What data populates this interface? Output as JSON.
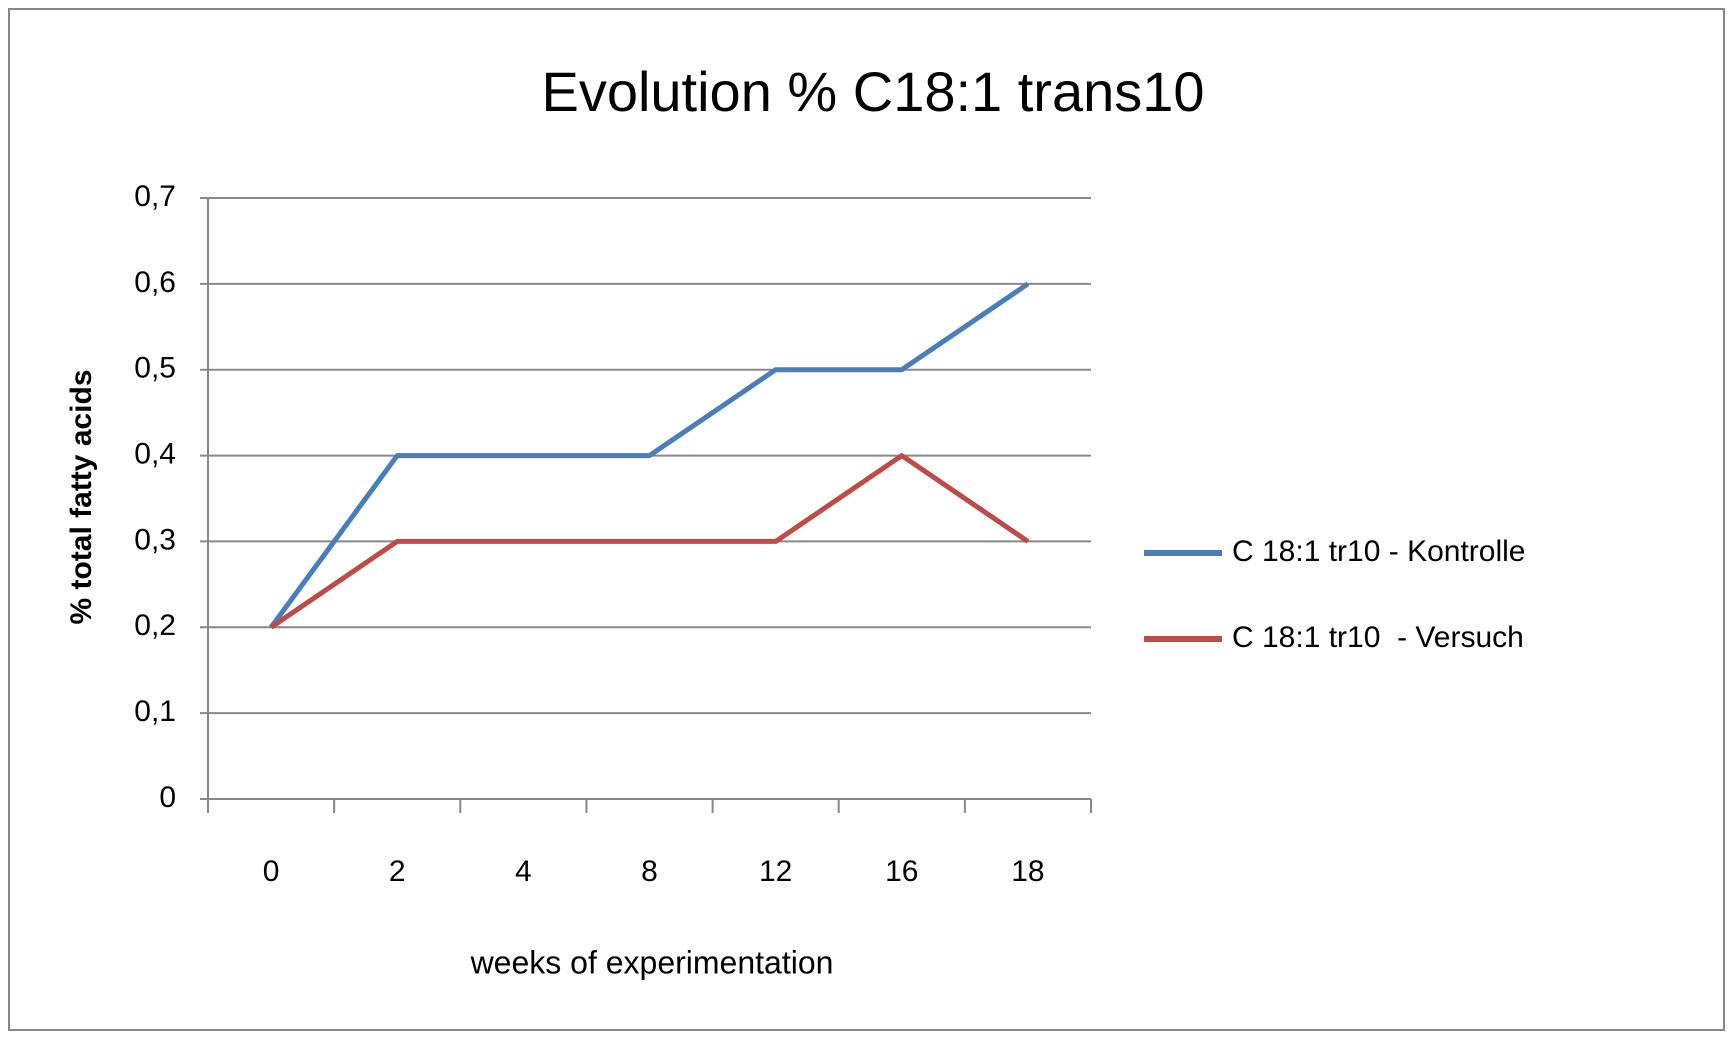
{
  "chart_data": {
    "type": "line",
    "title": "Evolution % C18:1 trans10",
    "x_label": "weeks of experimentation",
    "y_label": "% total fatty acids",
    "categories": [
      "0",
      "2",
      "4",
      "8",
      "12",
      "16",
      "18"
    ],
    "series": [
      {
        "name": "C 18:1 tr10 - Kontrolle",
        "color": "#4a7ebb",
        "values": [
          0.2,
          0.4,
          0.4,
          0.4,
          0.5,
          0.5,
          0.6
        ]
      },
      {
        "name": "C 18:1 tr10  - Versuch",
        "color": "#be4b48",
        "values": [
          0.2,
          0.3,
          0.3,
          0.3,
          0.3,
          0.4,
          0.3
        ]
      }
    ],
    "ylim": [
      0,
      0.7
    ],
    "yticks": [
      0,
      {
        "value": 0.1,
        "label": "0,1"
      },
      {
        "value": 0.2,
        "label": "0,2"
      },
      {
        "value": 0.3,
        "label": "0,3"
      },
      {
        "value": 0.4,
        "label": "0,4"
      },
      {
        "value": 0.5,
        "label": "0,5"
      },
      {
        "value": 0.6,
        "label": "0,6"
      },
      {
        "value": 0.7,
        "label": "0,7"
      }
    ],
    "grid": true,
    "legend": "right"
  }
}
